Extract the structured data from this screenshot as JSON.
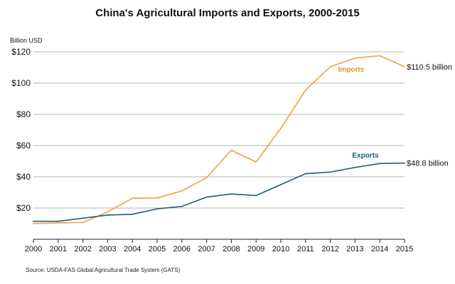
{
  "chart_data": {
    "type": "line",
    "title": "China's Agricultural Imports and Exports, 2000-2015",
    "ylabel": "Billion USD",
    "xlabel": "",
    "x": [
      2000,
      2001,
      2002,
      2003,
      2004,
      2005,
      2006,
      2007,
      2008,
      2009,
      2010,
      2011,
      2012,
      2013,
      2014,
      2015
    ],
    "ylim": [
      0,
      120
    ],
    "yticks": [
      20,
      40,
      60,
      80,
      100,
      120
    ],
    "ytick_labels": [
      "$20",
      "$40",
      "$60",
      "$80",
      "$100",
      "$120"
    ],
    "grid": true,
    "series": [
      {
        "name": "Imports",
        "color": "#f0a040",
        "label_color": "#e39230",
        "values": [
          10,
          10.5,
          10.8,
          17.5,
          26.3,
          26.4,
          31,
          39.5,
          57,
          49.5,
          71,
          95.5,
          110.5,
          116,
          117.5,
          110.5
        ],
        "end_label": "$110.5 billion"
      },
      {
        "name": "Exports",
        "color": "#1f5f79",
        "label_color": "#1f5f79",
        "values": [
          11.5,
          11.5,
          13.5,
          15.5,
          16,
          19.5,
          21,
          27,
          29,
          28,
          35,
          42,
          43,
          46,
          48.5,
          48.8
        ],
        "end_label": "$48.8 billion"
      }
    ]
  },
  "source": "Source:  USDA-FAS Global Agricultural Trade System (GATS)"
}
